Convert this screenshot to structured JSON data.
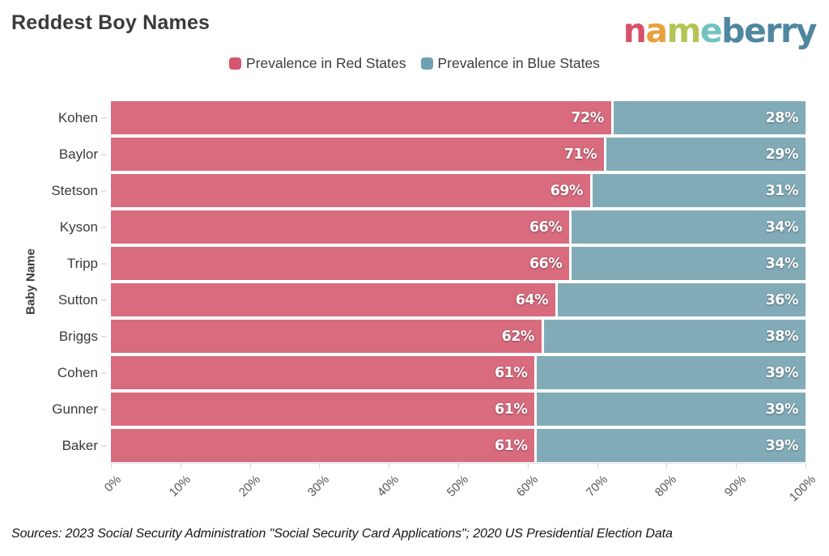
{
  "header": {
    "title": "Reddest Boy Names",
    "logo": {
      "text": "nameberry",
      "letters": [
        {
          "char": "n",
          "color": "#d8516b"
        },
        {
          "char": "a",
          "color": "#e9a03d"
        },
        {
          "char": "m",
          "color": "#b4c455"
        },
        {
          "char": "e",
          "color": "#72c4bf"
        },
        {
          "char": "b",
          "color": "#4f87a1"
        },
        {
          "char": "e",
          "color": "#4f87a1"
        },
        {
          "char": "r",
          "color": "#4f87a1"
        },
        {
          "char": "r",
          "color": "#4f87a1"
        },
        {
          "char": "y",
          "color": "#4f87a1"
        }
      ]
    }
  },
  "legend": {
    "items": [
      {
        "label": "Prevalence in Red States",
        "color": "#d4566e"
      },
      {
        "label": "Prevalence in Blue States",
        "color": "#6fa1b3"
      }
    ]
  },
  "chart_data": {
    "type": "bar",
    "orientation": "horizontal",
    "stacked": true,
    "title": "Reddest Boy Names",
    "ylabel": "Baby Name",
    "xlabel": "",
    "categories": [
      "Kohen",
      "Baylor",
      "Stetson",
      "Kyson",
      "Tripp",
      "Sutton",
      "Briggs",
      "Cohen",
      "Gunner",
      "Baker"
    ],
    "series": [
      {
        "name": "Prevalence in Red States",
        "color": "#d96b7e",
        "values": [
          72,
          71,
          69,
          66,
          66,
          64,
          62,
          61,
          61,
          61
        ]
      },
      {
        "name": "Prevalence in Blue States",
        "color": "#82abb8",
        "values": [
          28,
          29,
          31,
          34,
          34,
          36,
          38,
          39,
          39,
          39
        ]
      }
    ],
    "value_suffix": "%",
    "xlim": [
      0,
      100
    ],
    "x_ticks": [
      "0%",
      "10%",
      "20%",
      "30%",
      "40%",
      "50%",
      "60%",
      "70%",
      "80%",
      "90%",
      "100%"
    ],
    "legend_position": "top",
    "grid": false
  },
  "footer": {
    "source": "Sources: 2023 Social Security Administration \"Social Security Card Applications\"; 2020 US Presidential Election Data"
  }
}
